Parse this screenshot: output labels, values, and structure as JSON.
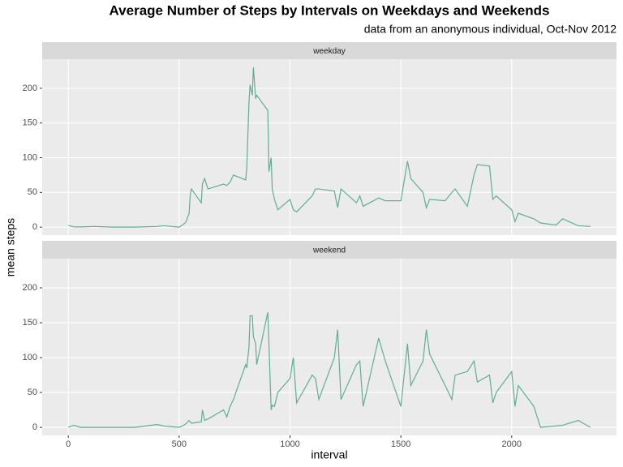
{
  "chart_data": {
    "type": "line",
    "title": "Average Number of Steps by Intervals on Weekdays and Weekends",
    "subtitle": "data from an anonymous individual, Oct-Nov 2012",
    "x_label": "interval",
    "y_label": "mean steps",
    "facet": true,
    "grid": true,
    "xlim": [
      -117.75,
      2472.75
    ],
    "xticks": [
      0,
      500,
      1000,
      1500,
      2000
    ],
    "ylim": [
      -11.5,
      241.9
    ],
    "yticks": [
      0,
      50,
      100,
      150,
      200
    ],
    "x": [
      0,
      25,
      55,
      120,
      200,
      300,
      400,
      430,
      500,
      515,
      530,
      545,
      550,
      555,
      600,
      605,
      615,
      630,
      700,
      715,
      730,
      745,
      800,
      805,
      815,
      820,
      830,
      835,
      845,
      850,
      900,
      905,
      915,
      920,
      930,
      945,
      1000,
      1015,
      1030,
      1100,
      1115,
      1130,
      1200,
      1215,
      1230,
      1300,
      1315,
      1330,
      1400,
      1430,
      1500,
      1530,
      1545,
      1600,
      1615,
      1630,
      1700,
      1730,
      1745,
      1800,
      1830,
      1845,
      1900,
      1915,
      1930,
      2000,
      2015,
      2030,
      2100,
      2130,
      2200,
      2230,
      2300,
      2355
    ],
    "series": [
      {
        "name": "weekday",
        "color": "#5fae92",
        "values": [
          2.3,
          0.5,
          0.3,
          1,
          0,
          0,
          1,
          2,
          0,
          3,
          7,
          20,
          46,
          55,
          35,
          62,
          70,
          55,
          62,
          60,
          65,
          75,
          68,
          85,
          180,
          205,
          190,
          230,
          185,
          190,
          168,
          80,
          100,
          55,
          40,
          25,
          40,
          25,
          22,
          45,
          55,
          55,
          52,
          28,
          55,
          35,
          45,
          30,
          42,
          38,
          38,
          95,
          70,
          50,
          28,
          40,
          38,
          50,
          55,
          30,
          75,
          90,
          88,
          40,
          45,
          25,
          8,
          20,
          12,
          6,
          3,
          12,
          2,
          1
        ]
      },
      {
        "name": "weekend",
        "color": "#5fae92",
        "values": [
          0,
          3,
          0,
          0,
          0,
          0,
          4,
          2,
          0,
          2,
          5,
          10,
          8,
          6,
          8,
          25,
          10,
          12,
          25,
          15,
          30,
          40,
          90,
          85,
          115,
          160,
          160,
          130,
          120,
          90,
          165,
          120,
          25,
          32,
          30,
          50,
          70,
          100,
          35,
          75,
          70,
          40,
          100,
          140,
          40,
          90,
          95,
          30,
          128,
          95,
          30,
          120,
          60,
          95,
          140,
          105,
          60,
          40,
          75,
          80,
          95,
          65,
          75,
          35,
          50,
          80,
          30,
          60,
          30,
          0,
          2,
          3,
          10,
          0
        ]
      }
    ]
  }
}
